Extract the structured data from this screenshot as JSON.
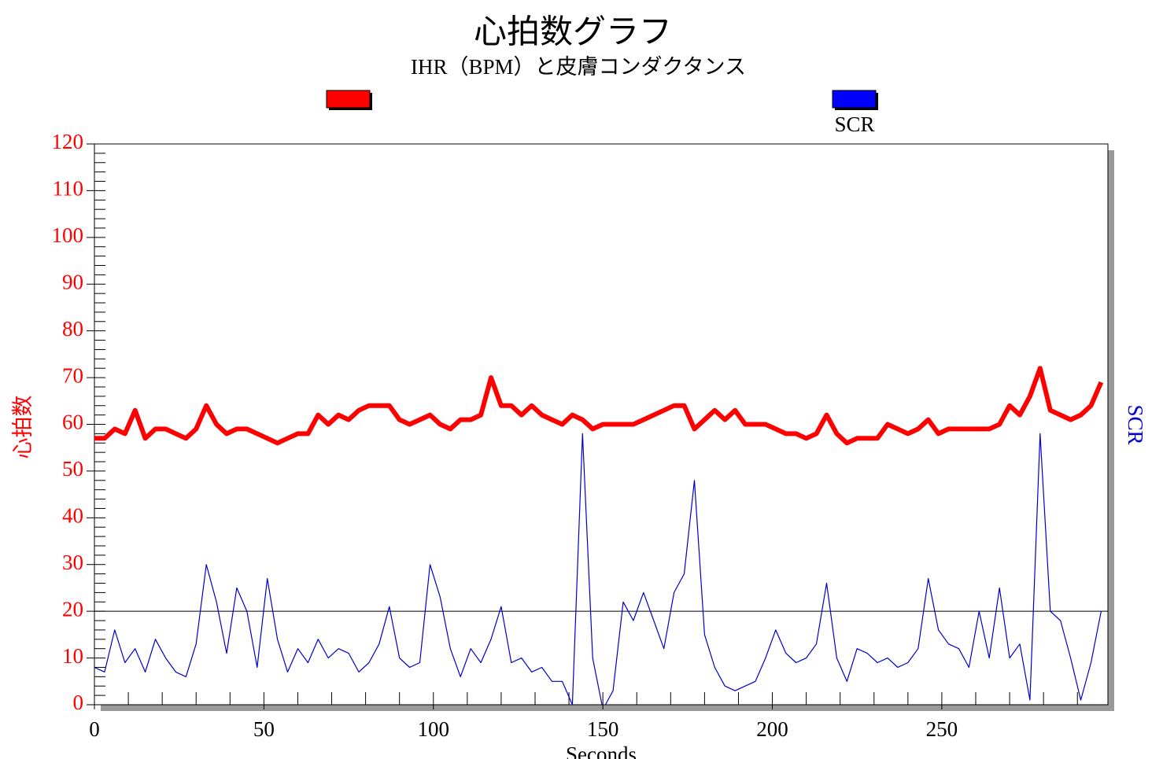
{
  "chart_data": {
    "type": "line",
    "title": "心拍数グラフ",
    "subtitle": "IHR（BPM）と皮膚コンダクタンス",
    "xlabel": "Seconds",
    "ylabel": "心拍数",
    "y2label": "SCR",
    "x": [
      0,
      3,
      6,
      9,
      12,
      15,
      18,
      21,
      24,
      27,
      30,
      33,
      36,
      39,
      42,
      45,
      48,
      51,
      54,
      57,
      60,
      63,
      66,
      69,
      72,
      75,
      78,
      81,
      84,
      87,
      90,
      93,
      96,
      99,
      102,
      105,
      108,
      111,
      114,
      117,
      120,
      123,
      126,
      129,
      132,
      135,
      138,
      141,
      144,
      147,
      150,
      153,
      156,
      159,
      162,
      165,
      168,
      171,
      174,
      177,
      180,
      183,
      186,
      189,
      192,
      195,
      198,
      201,
      204,
      207,
      210,
      213,
      216,
      219,
      222,
      225,
      228,
      231,
      234,
      237,
      240,
      243,
      246,
      249,
      252,
      255,
      258,
      261,
      264,
      267,
      270,
      273,
      276,
      279,
      282,
      285,
      288,
      291,
      294,
      297
    ],
    "series": [
      {
        "color": "#ff0000",
        "values": [
          57,
          57,
          59,
          58,
          63,
          57,
          59,
          59,
          58,
          57,
          59,
          64,
          60,
          58,
          59,
          59,
          58,
          57,
          56,
          57,
          58,
          58,
          62,
          60,
          62,
          61,
          63,
          64,
          64,
          64,
          61,
          60,
          61,
          62,
          60,
          59,
          61,
          61,
          62,
          70,
          64,
          64,
          62,
          64,
          62,
          61,
          60,
          62,
          61,
          59,
          60,
          60,
          60,
          60,
          61,
          62,
          63,
          64,
          64,
          59,
          61,
          63,
          61,
          63,
          60,
          60,
          60,
          59,
          58,
          58,
          57,
          58,
          62,
          58,
          56,
          57,
          57,
          57,
          60,
          59,
          58,
          59,
          61,
          58,
          59,
          59,
          59,
          59,
          59,
          60,
          64,
          62,
          66,
          72,
          63,
          62,
          61,
          62,
          64,
          69
        ]
      },
      {
        "name": "SCR",
        "color": "#0000cc",
        "values": [
          8,
          7,
          16,
          9,
          12,
          7,
          14,
          10,
          7,
          6,
          13,
          30,
          22,
          11,
          25,
          20,
          8,
          27,
          14,
          7,
          12,
          9,
          14,
          10,
          12,
          11,
          7,
          9,
          13,
          21,
          10,
          8,
          9,
          30,
          23,
          12,
          6,
          12,
          9,
          14,
          21,
          9,
          10,
          7,
          8,
          5,
          5,
          0,
          58,
          10,
          -1,
          3,
          22,
          18,
          24,
          18,
          12,
          24,
          28,
          48,
          15,
          8,
          4,
          3,
          4,
          5,
          10,
          16,
          11,
          9,
          10,
          13,
          26,
          10,
          5,
          12,
          11,
          9,
          10,
          8,
          9,
          12,
          27,
          16,
          13,
          12,
          8,
          20,
          10,
          25,
          10,
          13,
          1,
          58,
          20,
          18,
          10,
          1,
          9,
          20
        ]
      }
    ],
    "xlim": [
      0,
      299
    ],
    "ylim": [
      0,
      120
    ],
    "xticks": [
      0,
      50,
      100,
      150,
      200,
      250
    ],
    "yticks": [
      0,
      10,
      20,
      30,
      40,
      50,
      60,
      70,
      80,
      90,
      100,
      110,
      120
    ],
    "hline": 20
  }
}
